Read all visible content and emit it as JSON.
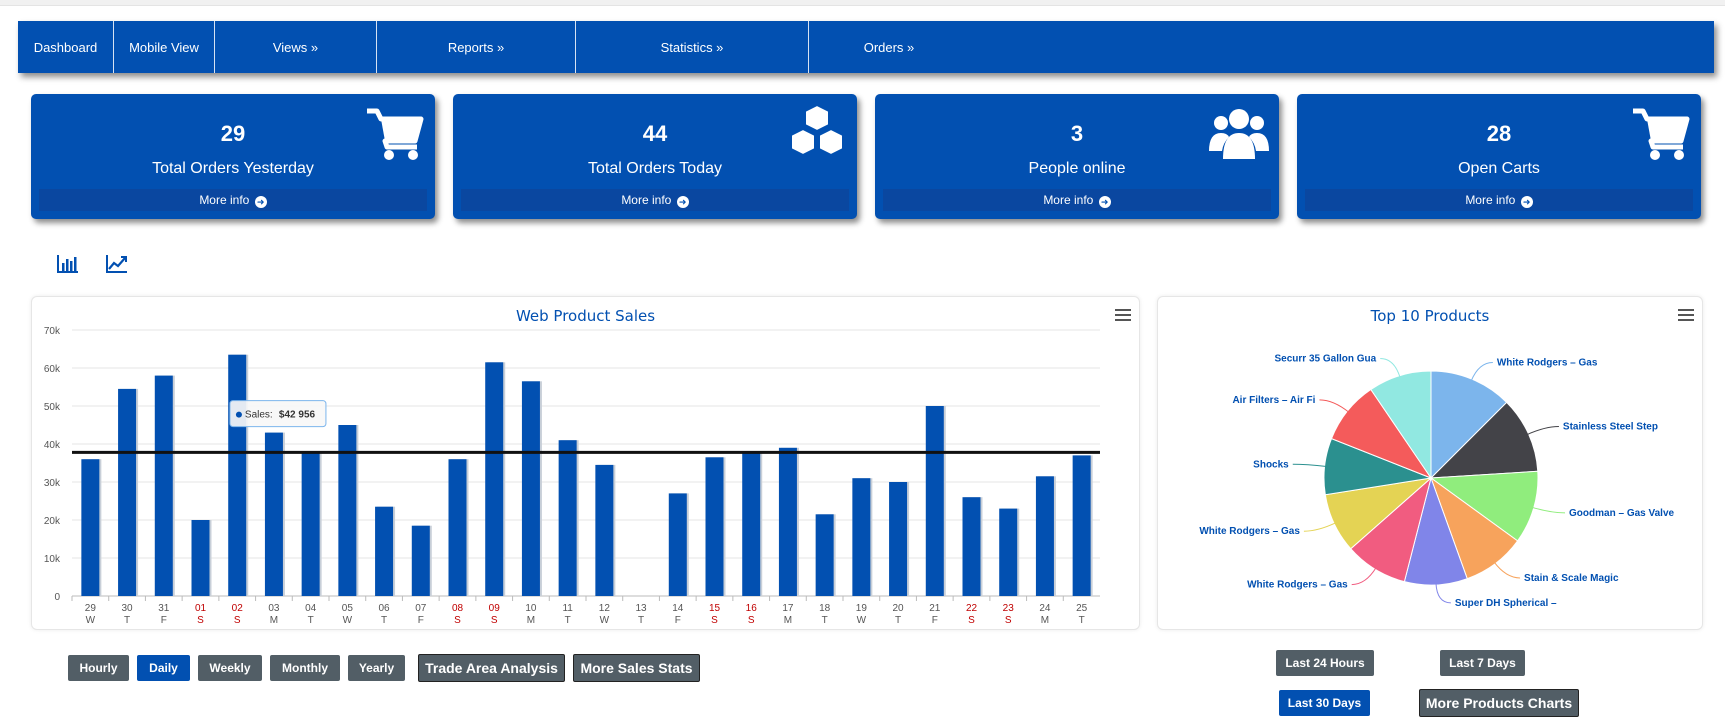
{
  "nav": {
    "items": [
      {
        "label": "Dashboard"
      },
      {
        "label": "Mobile View"
      },
      {
        "label": "Views »"
      },
      {
        "label": "Reports »"
      },
      {
        "label": "Statistics »"
      },
      {
        "label": "Orders »"
      }
    ]
  },
  "cards": [
    {
      "value": "29",
      "label": "Total Orders Yesterday",
      "more": "More info",
      "icon": "cart-icon"
    },
    {
      "value": "44",
      "label": "Total Orders Today",
      "more": "More info",
      "icon": "cubes-icon"
    },
    {
      "value": "3",
      "label": "People online",
      "more": "More info",
      "icon": "users-icon"
    },
    {
      "value": "28",
      "label": "Open Carts",
      "more": "More info",
      "icon": "cart-icon"
    }
  ],
  "tools": {
    "bar_icon": "bar-chart-icon",
    "line_icon": "line-chart-icon"
  },
  "chart_data": [
    {
      "type": "bar",
      "title": "Web Product Sales",
      "categories": [
        "29",
        "30",
        "31",
        "01",
        "02",
        "03",
        "04",
        "05",
        "06",
        "07",
        "08",
        "09",
        "10",
        "11",
        "12",
        "13",
        "14",
        "15",
        "16",
        "17",
        "18",
        "19",
        "20",
        "21",
        "22",
        "23",
        "24",
        "25"
      ],
      "weekdays": [
        "W",
        "T",
        "F",
        "S",
        "S",
        "M",
        "T",
        "W",
        "T",
        "F",
        "S",
        "S",
        "M",
        "T",
        "W",
        "T",
        "F",
        "S",
        "S",
        "M",
        "T",
        "W",
        "T",
        "F",
        "S",
        "S",
        "M",
        "T"
      ],
      "weekend": [
        false,
        false,
        false,
        true,
        true,
        false,
        false,
        false,
        false,
        false,
        true,
        true,
        false,
        false,
        false,
        false,
        false,
        true,
        true,
        false,
        false,
        false,
        false,
        false,
        true,
        true,
        false,
        false
      ],
      "values": [
        36000,
        54500,
        58000,
        20000,
        63500,
        43000,
        38000,
        45000,
        23500,
        18500,
        36000,
        61500,
        56500,
        41000,
        34500,
        0,
        27000,
        36500,
        38000,
        39000,
        21500,
        31000,
        30000,
        50000,
        26000,
        23000,
        31500,
        37000
      ],
      "average": 37800,
      "ylim": [
        0,
        70000
      ],
      "yticks": [
        "0",
        "10k",
        "20k",
        "30k",
        "40k",
        "50k",
        "60k",
        "70k"
      ],
      "tooltip": {
        "label": "Sales:",
        "value": "$42 956"
      },
      "bar_color": "#0250b1",
      "weekend_color": "#c00000"
    },
    {
      "type": "pie",
      "title": "Top 10 Products",
      "slices": [
        {
          "label": "White Rodgers – Gas",
          "value": 12.5,
          "color": "#7cb5ec"
        },
        {
          "label": "Stainless Steel Step",
          "value": 11.5,
          "color": "#434348"
        },
        {
          "label": "Goodman – Gas Valve",
          "value": 11.0,
          "color": "#90ed7d"
        },
        {
          "label": "Stain & Scale Magic",
          "value": 9.5,
          "color": "#f7a35c"
        },
        {
          "label": "Super DH Spherical –",
          "value": 9.5,
          "color": "#8085e9"
        },
        {
          "label": "White Rodgers – Gas",
          "value": 9.5,
          "color": "#f15c80"
        },
        {
          "label": "White Rodgers – Gas",
          "value": 9.0,
          "color": "#e4d354"
        },
        {
          "label": "Shocks",
          "value": 8.5,
          "color": "#2b908f"
        },
        {
          "label": "Air Filters – Air Fi",
          "value": 9.5,
          "color": "#f45b5b"
        },
        {
          "label": "Securr 35 Gallon Gua",
          "value": 9.5,
          "color": "#91e8e1"
        }
      ]
    }
  ],
  "buttons": {
    "hourly": "Hourly",
    "daily": "Daily",
    "weekly": "Weekly",
    "monthly": "Monthly",
    "yearly": "Yearly",
    "trade": "Trade Area Analysis",
    "more_sales": "More Sales Stats",
    "last24": "Last 24 Hours",
    "last7": "Last 7 Days",
    "last30": "Last 30 Days",
    "more_products": "More Products Charts"
  }
}
